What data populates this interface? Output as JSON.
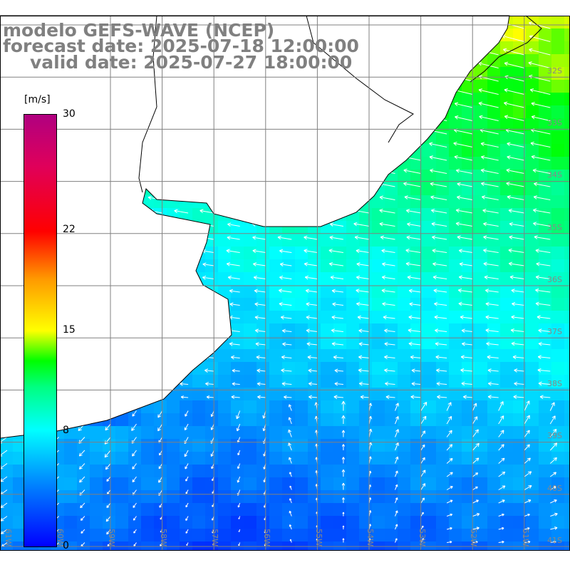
{
  "title": {
    "model": "modelo GEFS-WAVE (NCEP)",
    "forecast": "forecast date: 2025-07-18 12:00:00",
    "valid": "valid date: 2025-07-27 18:00:00"
  },
  "colorbar": {
    "unit": "[m/s]",
    "ticks": [
      {
        "label": "30",
        "value": 30
      },
      {
        "label": "22",
        "value": 22
      },
      {
        "label": "15",
        "value": 15
      },
      {
        "label": "8",
        "value": 8
      },
      {
        "label": "0",
        "value": 0
      }
    ],
    "range": [
      0,
      30
    ]
  },
  "lat_labels": [
    "32S",
    "33S",
    "34S",
    "35S",
    "36S",
    "37S",
    "38S",
    "39S",
    "40S",
    "41S"
  ],
  "lon_labels": [
    "61W",
    "60W",
    "59W",
    "58W",
    "57W",
    "56W",
    "55W",
    "54W",
    "53W",
    "52W",
    "51W"
  ],
  "colors": {
    "land": "#ffffff",
    "coast": "#000000",
    "grid": "#808080",
    "arrow": "#ffffff",
    "text": "#808080"
  }
}
